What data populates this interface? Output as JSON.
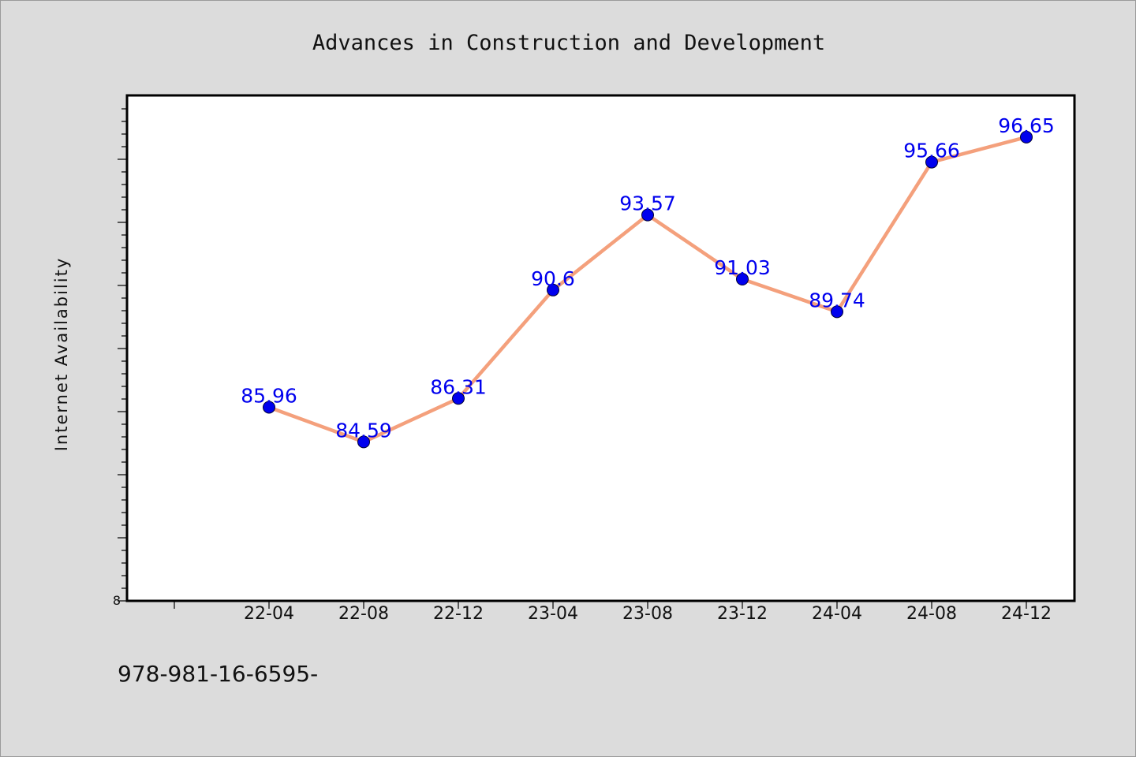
{
  "chart_data": {
    "type": "line",
    "title": "Advances in Construction and Development",
    "xlabel": "",
    "ylabel": "Internet Availability",
    "categories": [
      "22-04",
      "22-08",
      "22-12",
      "23-04",
      "23-08",
      "23-12",
      "24-04",
      "24-08",
      "24-12"
    ],
    "series": [
      {
        "values": [
          85.96,
          84.59,
          86.31,
          90.6,
          93.57,
          91.03,
          89.74,
          95.66,
          96.65
        ],
        "data_labels": [
          "85.96",
          "84.59",
          "86.31",
          "90.6",
          "93.57",
          "91.03",
          "89.74",
          "95.66",
          "96.65"
        ]
      }
    ],
    "ylim": [
      78.3,
      98.3
    ],
    "yticks_labeled": [
      "8"
    ],
    "grid": false,
    "legend": "none",
    "colors": {
      "line": "#f4a07c",
      "marker": "#0000ee",
      "data_label": "#0000ee",
      "plot_background": "#ffffff",
      "page_background": "#dcdcdc"
    }
  },
  "footer": {
    "text": "978-981-16-6595-"
  }
}
